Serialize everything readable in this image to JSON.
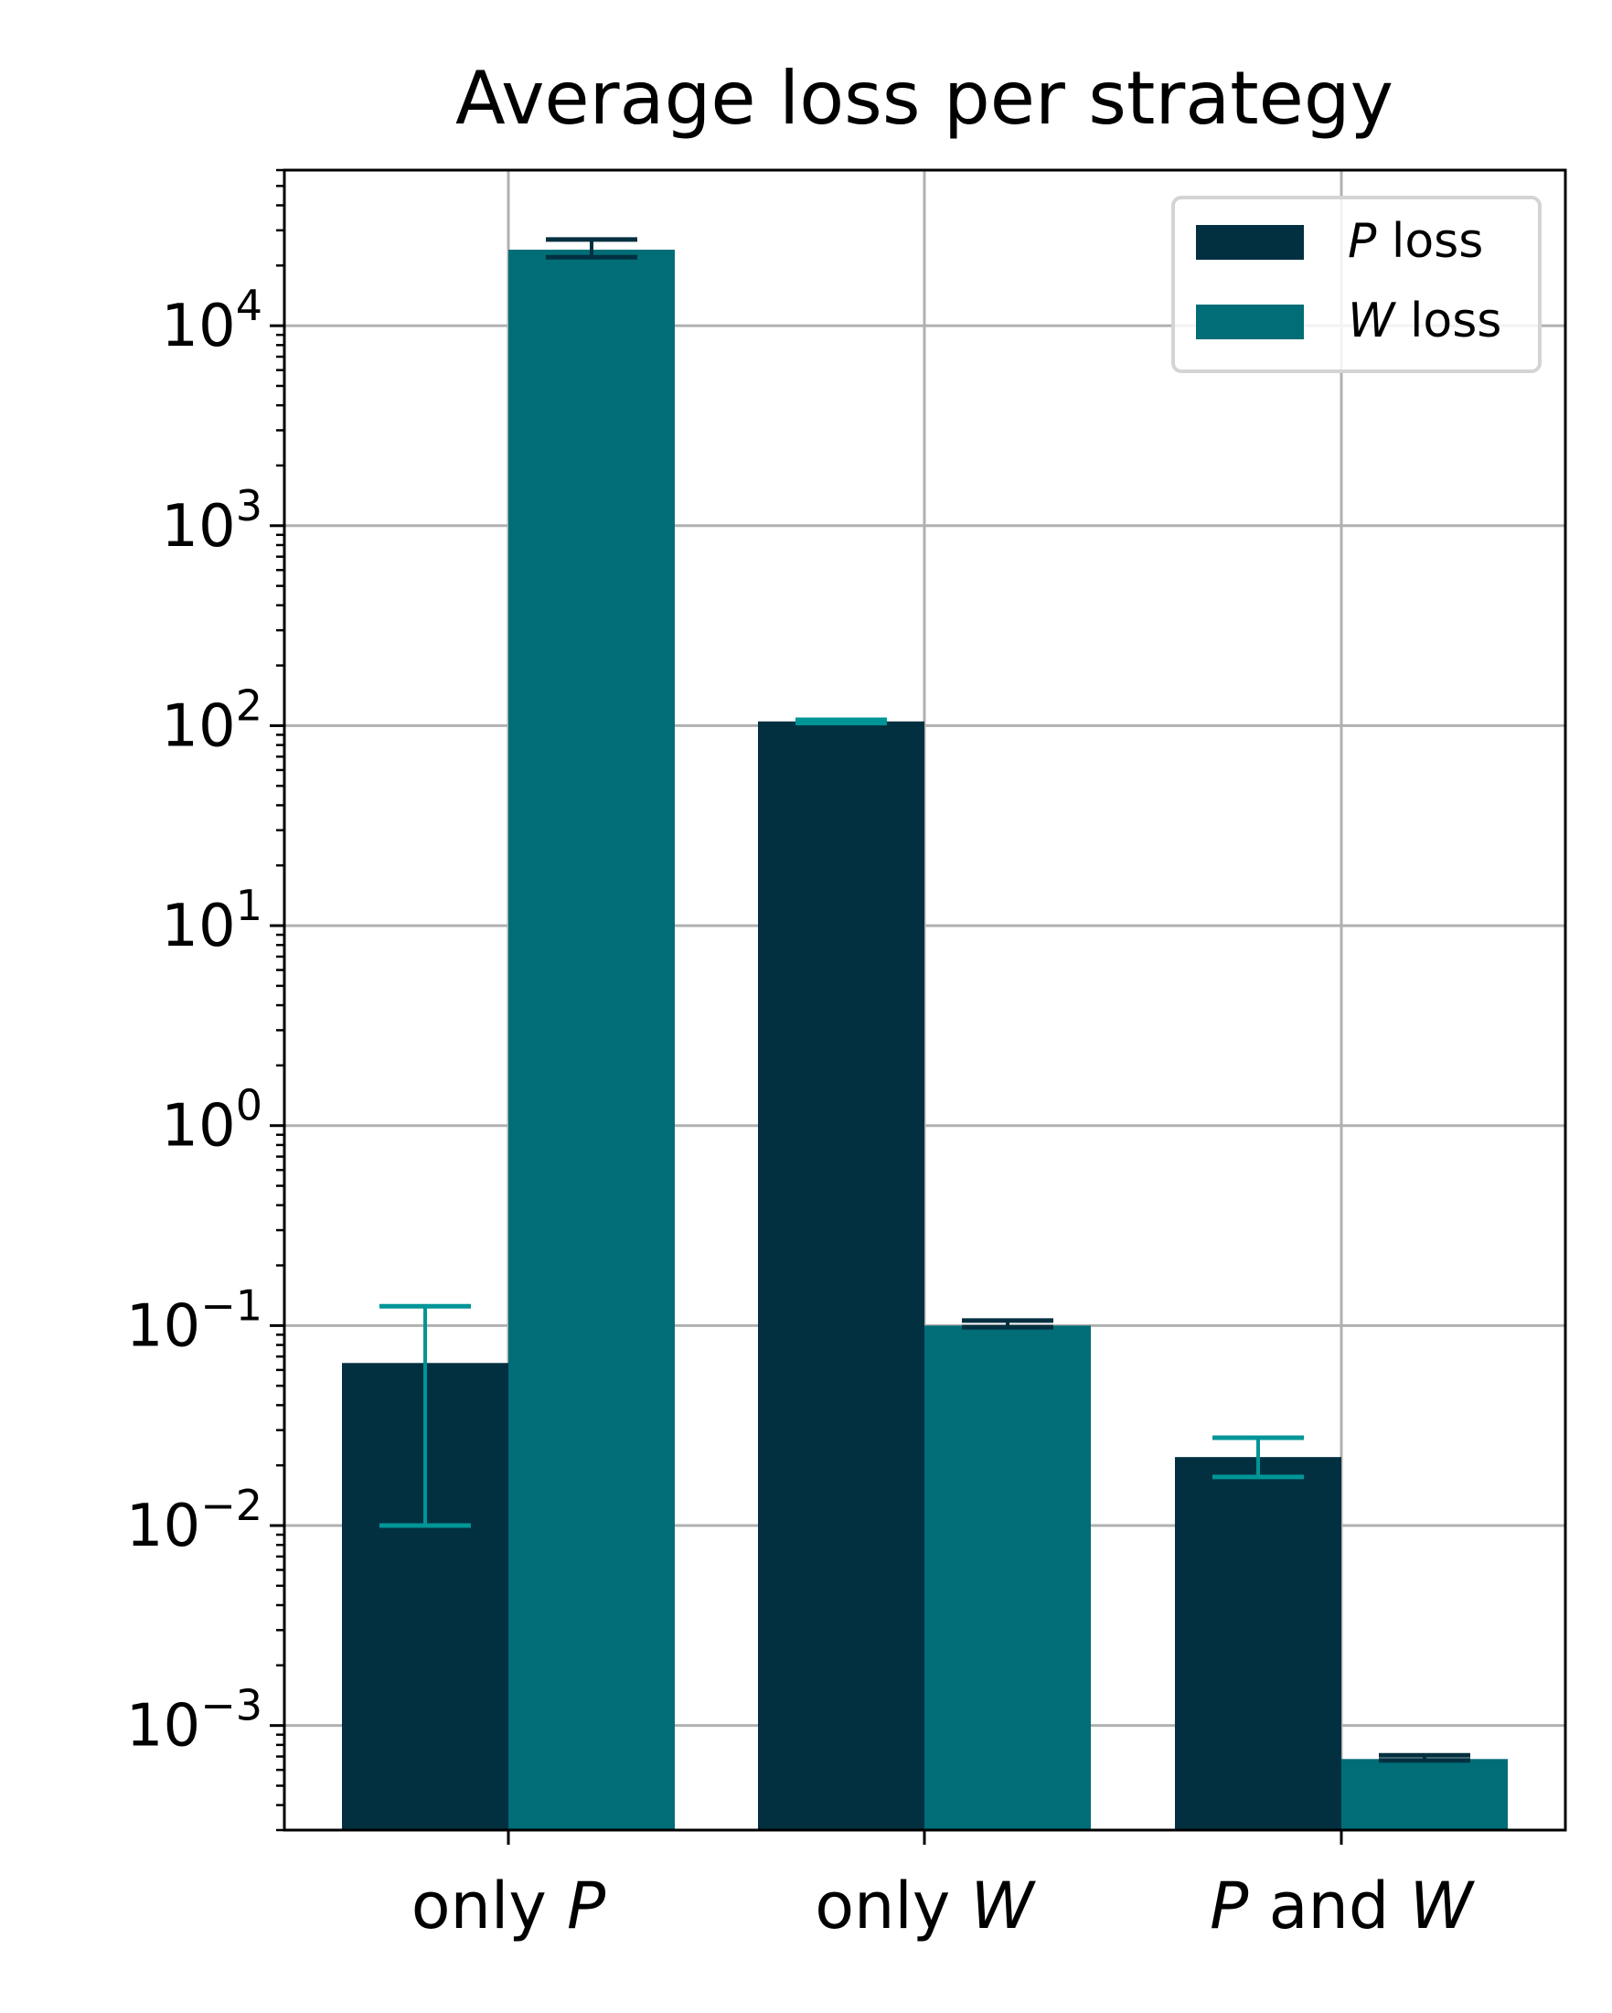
{
  "chart_data": {
    "type": "bar",
    "title": "Average loss per strategy",
    "categories": [
      {
        "pre": "only ",
        "ital": "P",
        "post": ""
      },
      {
        "pre": "only ",
        "ital": "W",
        "post": ""
      },
      {
        "pre": "",
        "ital": "P",
        "post": " and ",
        "ital2": "W"
      }
    ],
    "y_scale": "log",
    "ylim": [
      0.0003,
      60000
    ],
    "y_ticks": [
      {
        "value": 0.001,
        "base": "10",
        "exp": "−3"
      },
      {
        "value": 0.01,
        "base": "10",
        "exp": "−2"
      },
      {
        "value": 0.1,
        "base": "10",
        "exp": "−1"
      },
      {
        "value": 1,
        "base": "10",
        "exp": "0"
      },
      {
        "value": 10,
        "base": "10",
        "exp": "1"
      },
      {
        "value": 100,
        "base": "10",
        "exp": "2"
      },
      {
        "value": 1000,
        "base": "10",
        "exp": "3"
      },
      {
        "value": 10000,
        "base": "10",
        "exp": "4"
      }
    ],
    "grid": true,
    "legend_position": "top-right",
    "series": [
      {
        "name_ital": "P",
        "name_rest": " loss",
        "color": "#023040",
        "errbar_color": "#009597",
        "values": [
          0.065,
          105,
          0.022
        ],
        "err_low": [
          0.01,
          103,
          0.0175
        ],
        "err_high": [
          0.125,
          107,
          0.0275
        ]
      },
      {
        "name_ital": "W",
        "name_rest": " loss",
        "color": "#006D77",
        "errbar_color": "#023040",
        "values": [
          24000,
          0.1,
          0.00068
        ],
        "err_low": [
          22000,
          0.098,
          0.00067
        ],
        "err_high": [
          27000,
          0.106,
          0.00071
        ]
      }
    ]
  }
}
